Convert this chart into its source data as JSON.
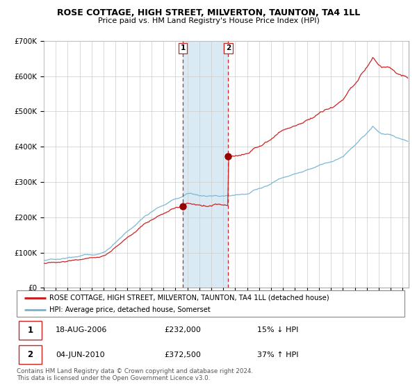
{
  "title": "ROSE COTTAGE, HIGH STREET, MILVERTON, TAUNTON, TA4 1LL",
  "subtitle": "Price paid vs. HM Land Registry's House Price Index (HPI)",
  "legend_line1": "ROSE COTTAGE, HIGH STREET, MILVERTON, TAUNTON, TA4 1LL (detached house)",
  "legend_line2": "HPI: Average price, detached house, Somerset",
  "transaction1_date": "18-AUG-2006",
  "transaction1_price": "£232,000",
  "transaction1_hpi": "15% ↓ HPI",
  "transaction2_date": "04-JUN-2010",
  "transaction2_price": "£372,500",
  "transaction2_hpi": "37% ↑ HPI",
  "footer": "Contains HM Land Registry data © Crown copyright and database right 2024.\nThis data is licensed under the Open Government Licence v3.0.",
  "hpi_color": "#7bb8d4",
  "price_color": "#cc2222",
  "marker_color": "#990000",
  "shade_color": "#daeaf5",
  "transaction1_x": 2006.63,
  "transaction2_x": 2010.42,
  "transaction1_y": 232000,
  "transaction2_y": 372500,
  "ylim": [
    0,
    700000
  ],
  "xlim_start": 1995.0,
  "xlim_end": 2025.5,
  "y_ticks": [
    0,
    100000,
    200000,
    300000,
    400000,
    500000,
    600000,
    700000
  ],
  "y_labels": [
    "£0",
    "£100K",
    "£200K",
    "£300K",
    "£400K",
    "£500K",
    "£600K",
    "£700K"
  ]
}
